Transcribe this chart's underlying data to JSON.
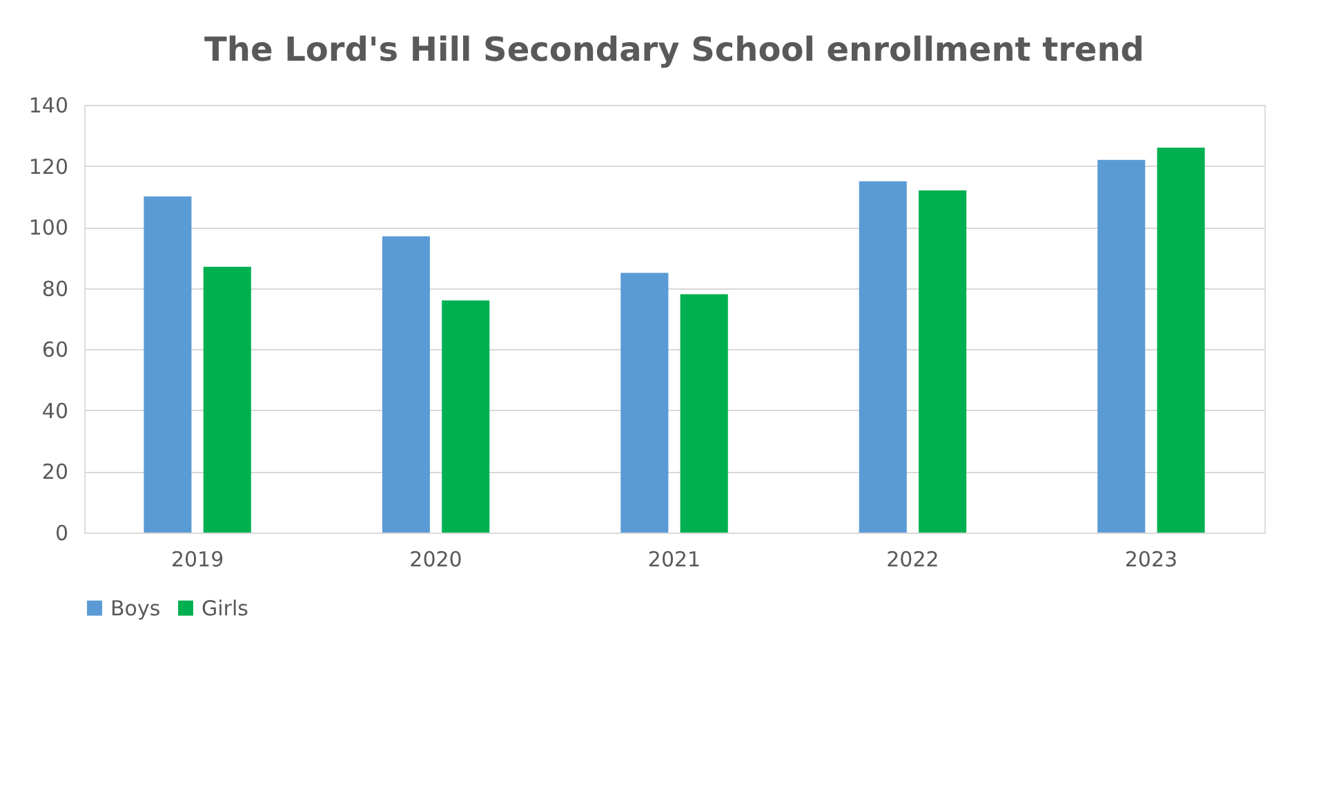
{
  "chart_data": {
    "type": "bar",
    "title": "The Lord's Hill Secondary School enrollment trend",
    "categories": [
      "2019",
      "2020",
      "2021",
      "2022",
      "2023"
    ],
    "series": [
      {
        "name": "Boys",
        "color": "#5b9bd5",
        "values": [
          110,
          97,
          85,
          115,
          122
        ]
      },
      {
        "name": "Girls",
        "color": "#00b050",
        "values": [
          87,
          76,
          78,
          112,
          126
        ]
      }
    ],
    "ylim": [
      0,
      140
    ],
    "yticks": [
      0,
      20,
      40,
      60,
      80,
      100,
      120,
      140
    ],
    "grid": "y",
    "legend": "bottom"
  }
}
